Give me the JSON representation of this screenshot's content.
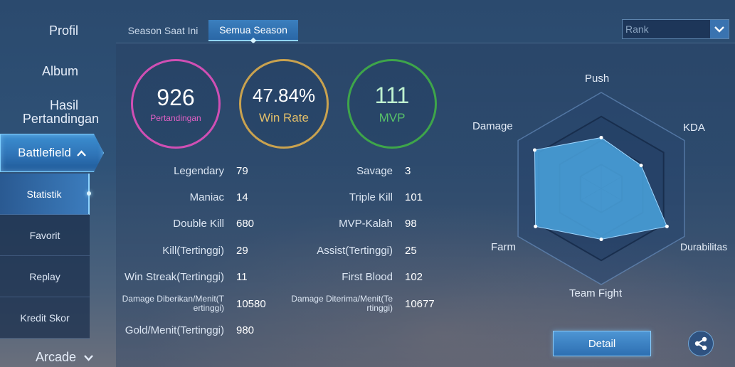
{
  "sidebar": {
    "profil": "Profil",
    "album": "Album",
    "hasil_line1": "Hasil",
    "hasil_line2": "Pertandingan",
    "battlefield": "Battlefield",
    "sub_items": [
      "Statistik",
      "Favorit",
      "Replay",
      "Kredit Skor"
    ],
    "arcade": "Arcade",
    "chevron_up": "❮",
    "chevron_down": "❯"
  },
  "tabs": {
    "current": "Season Saat Ini",
    "all": "Semua Season"
  },
  "dropdown": {
    "selected": "Rank"
  },
  "summary": {
    "matches": {
      "value": "926",
      "label": "Pertandingan",
      "color": "#d04fb4"
    },
    "win_rate": {
      "value": "47.84%",
      "label": "Win Rate",
      "color": "#c9a24f"
    },
    "mvp": {
      "value": "111",
      "label": "MVP",
      "color": "#3ea54a"
    }
  },
  "stats_left": [
    {
      "label": "Legendary",
      "value": "79"
    },
    {
      "label": "Maniac",
      "value": "14"
    },
    {
      "label": "Double Kill",
      "value": "680"
    },
    {
      "label": "Kill(Tertinggi)",
      "value": "29"
    },
    {
      "label": "Win Streak(Tertinggi)",
      "value": "11"
    },
    {
      "label_line1": "Damage Diberikan/Menit(T",
      "label_line2": "ertinggi)",
      "value": "10580"
    },
    {
      "label": "Gold/Menit(Tertinggi)",
      "value": "980"
    }
  ],
  "stats_right": [
    {
      "label": "Savage",
      "value": "3"
    },
    {
      "label": "Triple Kill",
      "value": "101"
    },
    {
      "label": "MVP-Kalah",
      "value": "98"
    },
    {
      "label": "Assist(Tertinggi)",
      "value": "25"
    },
    {
      "label": "First Blood",
      "value": "102"
    },
    {
      "label_line1": "Damage Diterima/Menit(Te",
      "label_line2": "rtinggi)",
      "value": "10677"
    }
  ],
  "radar": {
    "axes": [
      "Push",
      "KDA",
      "Durabilitas",
      "Team Fight",
      "Farm",
      "Damage"
    ],
    "values": [
      0.53,
      0.48,
      0.79,
      0.53,
      0.79,
      0.8
    ],
    "fill_color": "#4aa3de"
  },
  "buttons": {
    "detail": "Detail"
  }
}
